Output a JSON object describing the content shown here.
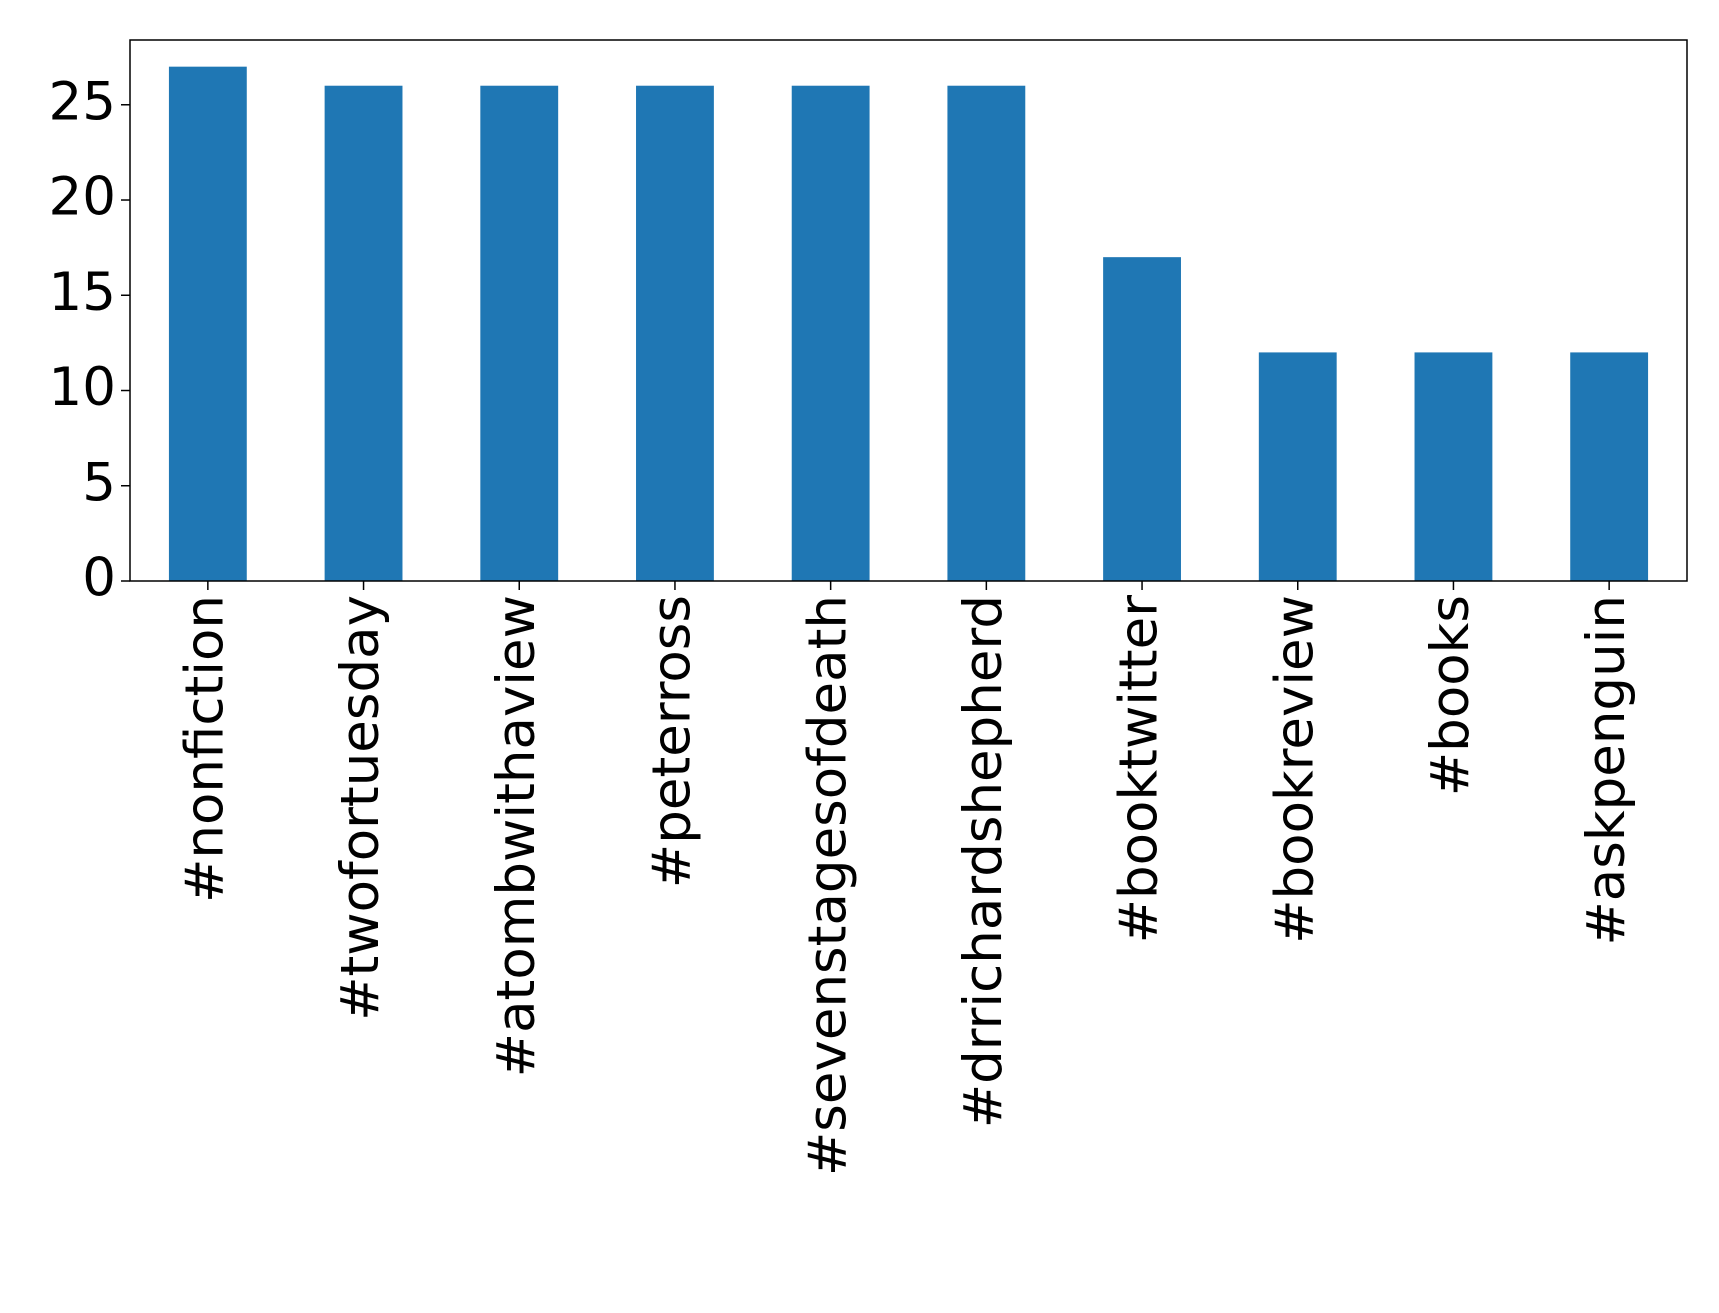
{
  "chart_data": {
    "type": "bar",
    "categories": [
      "#nonfiction",
      "#twofortuesday",
      "#atombwithaview",
      "#peterross",
      "#sevenstagesofdeath",
      "#drrichardshepherd",
      "#booktwitter",
      "#bookreview",
      "#books",
      "#askpenguin"
    ],
    "values": [
      27,
      26,
      26,
      26,
      26,
      26,
      17,
      12,
      12,
      12
    ],
    "color": "#1f77b4",
    "ylim": [
      0,
      28.4
    ],
    "yticks": [
      0,
      5,
      10,
      15,
      20,
      25
    ],
    "grid": false
  }
}
